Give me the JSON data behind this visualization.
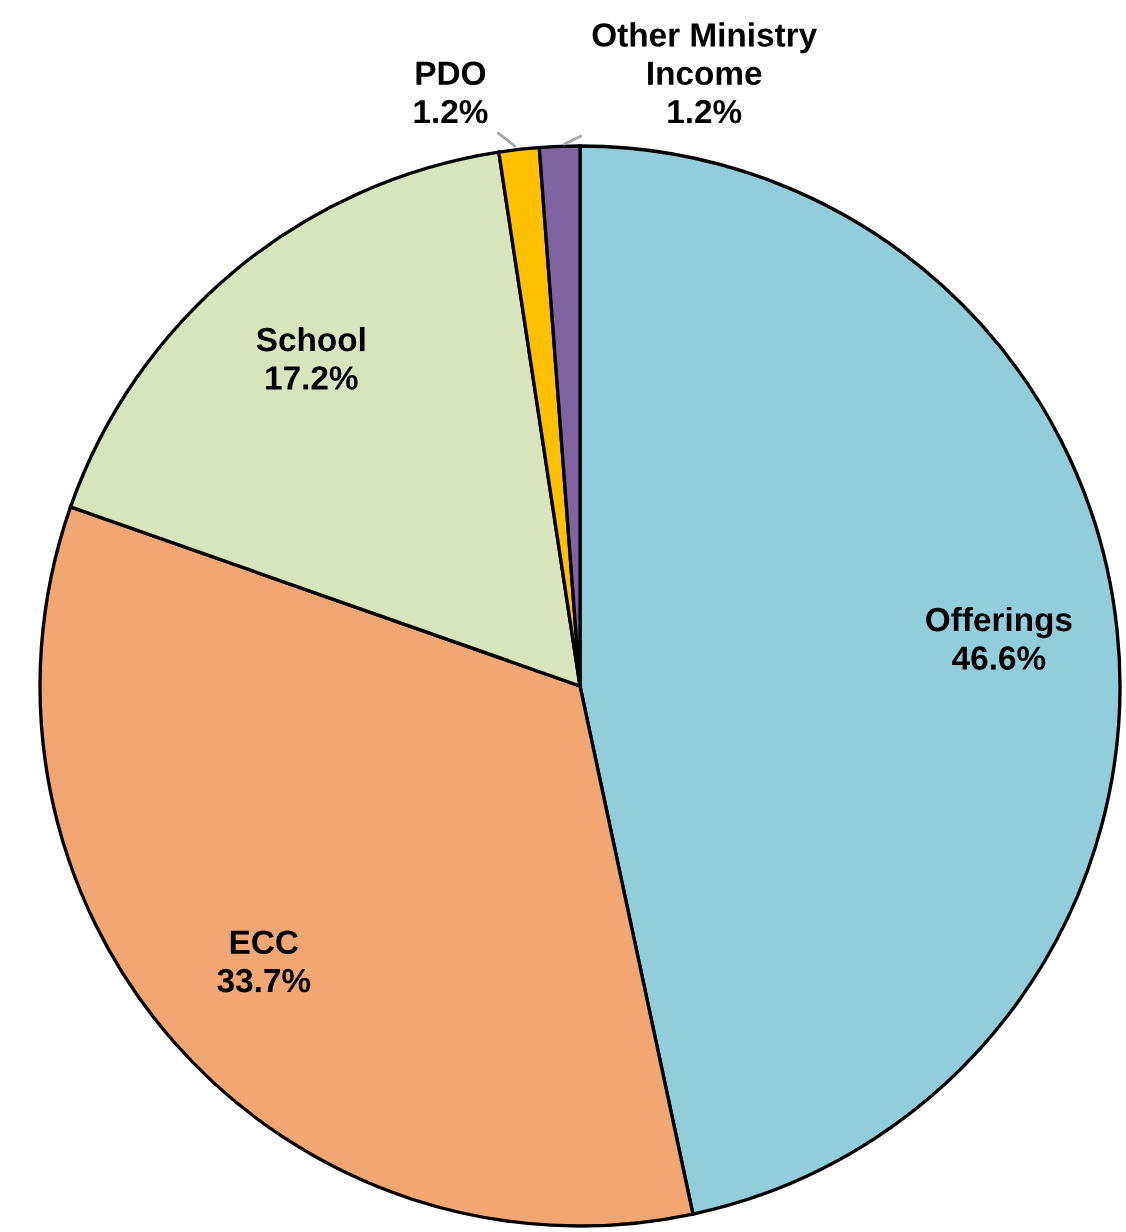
{
  "chart_data": {
    "type": "pie",
    "categories": [
      "Offerings",
      "ECC",
      "School",
      "PDO",
      "Other Ministry Income"
    ],
    "values": [
      46.6,
      33.7,
      17.2,
      1.2,
      1.2
    ],
    "colors": [
      "#92cddc",
      "#f2a672",
      "#d8e4bc",
      "#ffc000",
      "#8064a2"
    ],
    "value_labels": [
      "46.6%",
      "33.7%",
      "17.2%",
      "1.2%",
      "1.2%"
    ],
    "legend": false
  }
}
